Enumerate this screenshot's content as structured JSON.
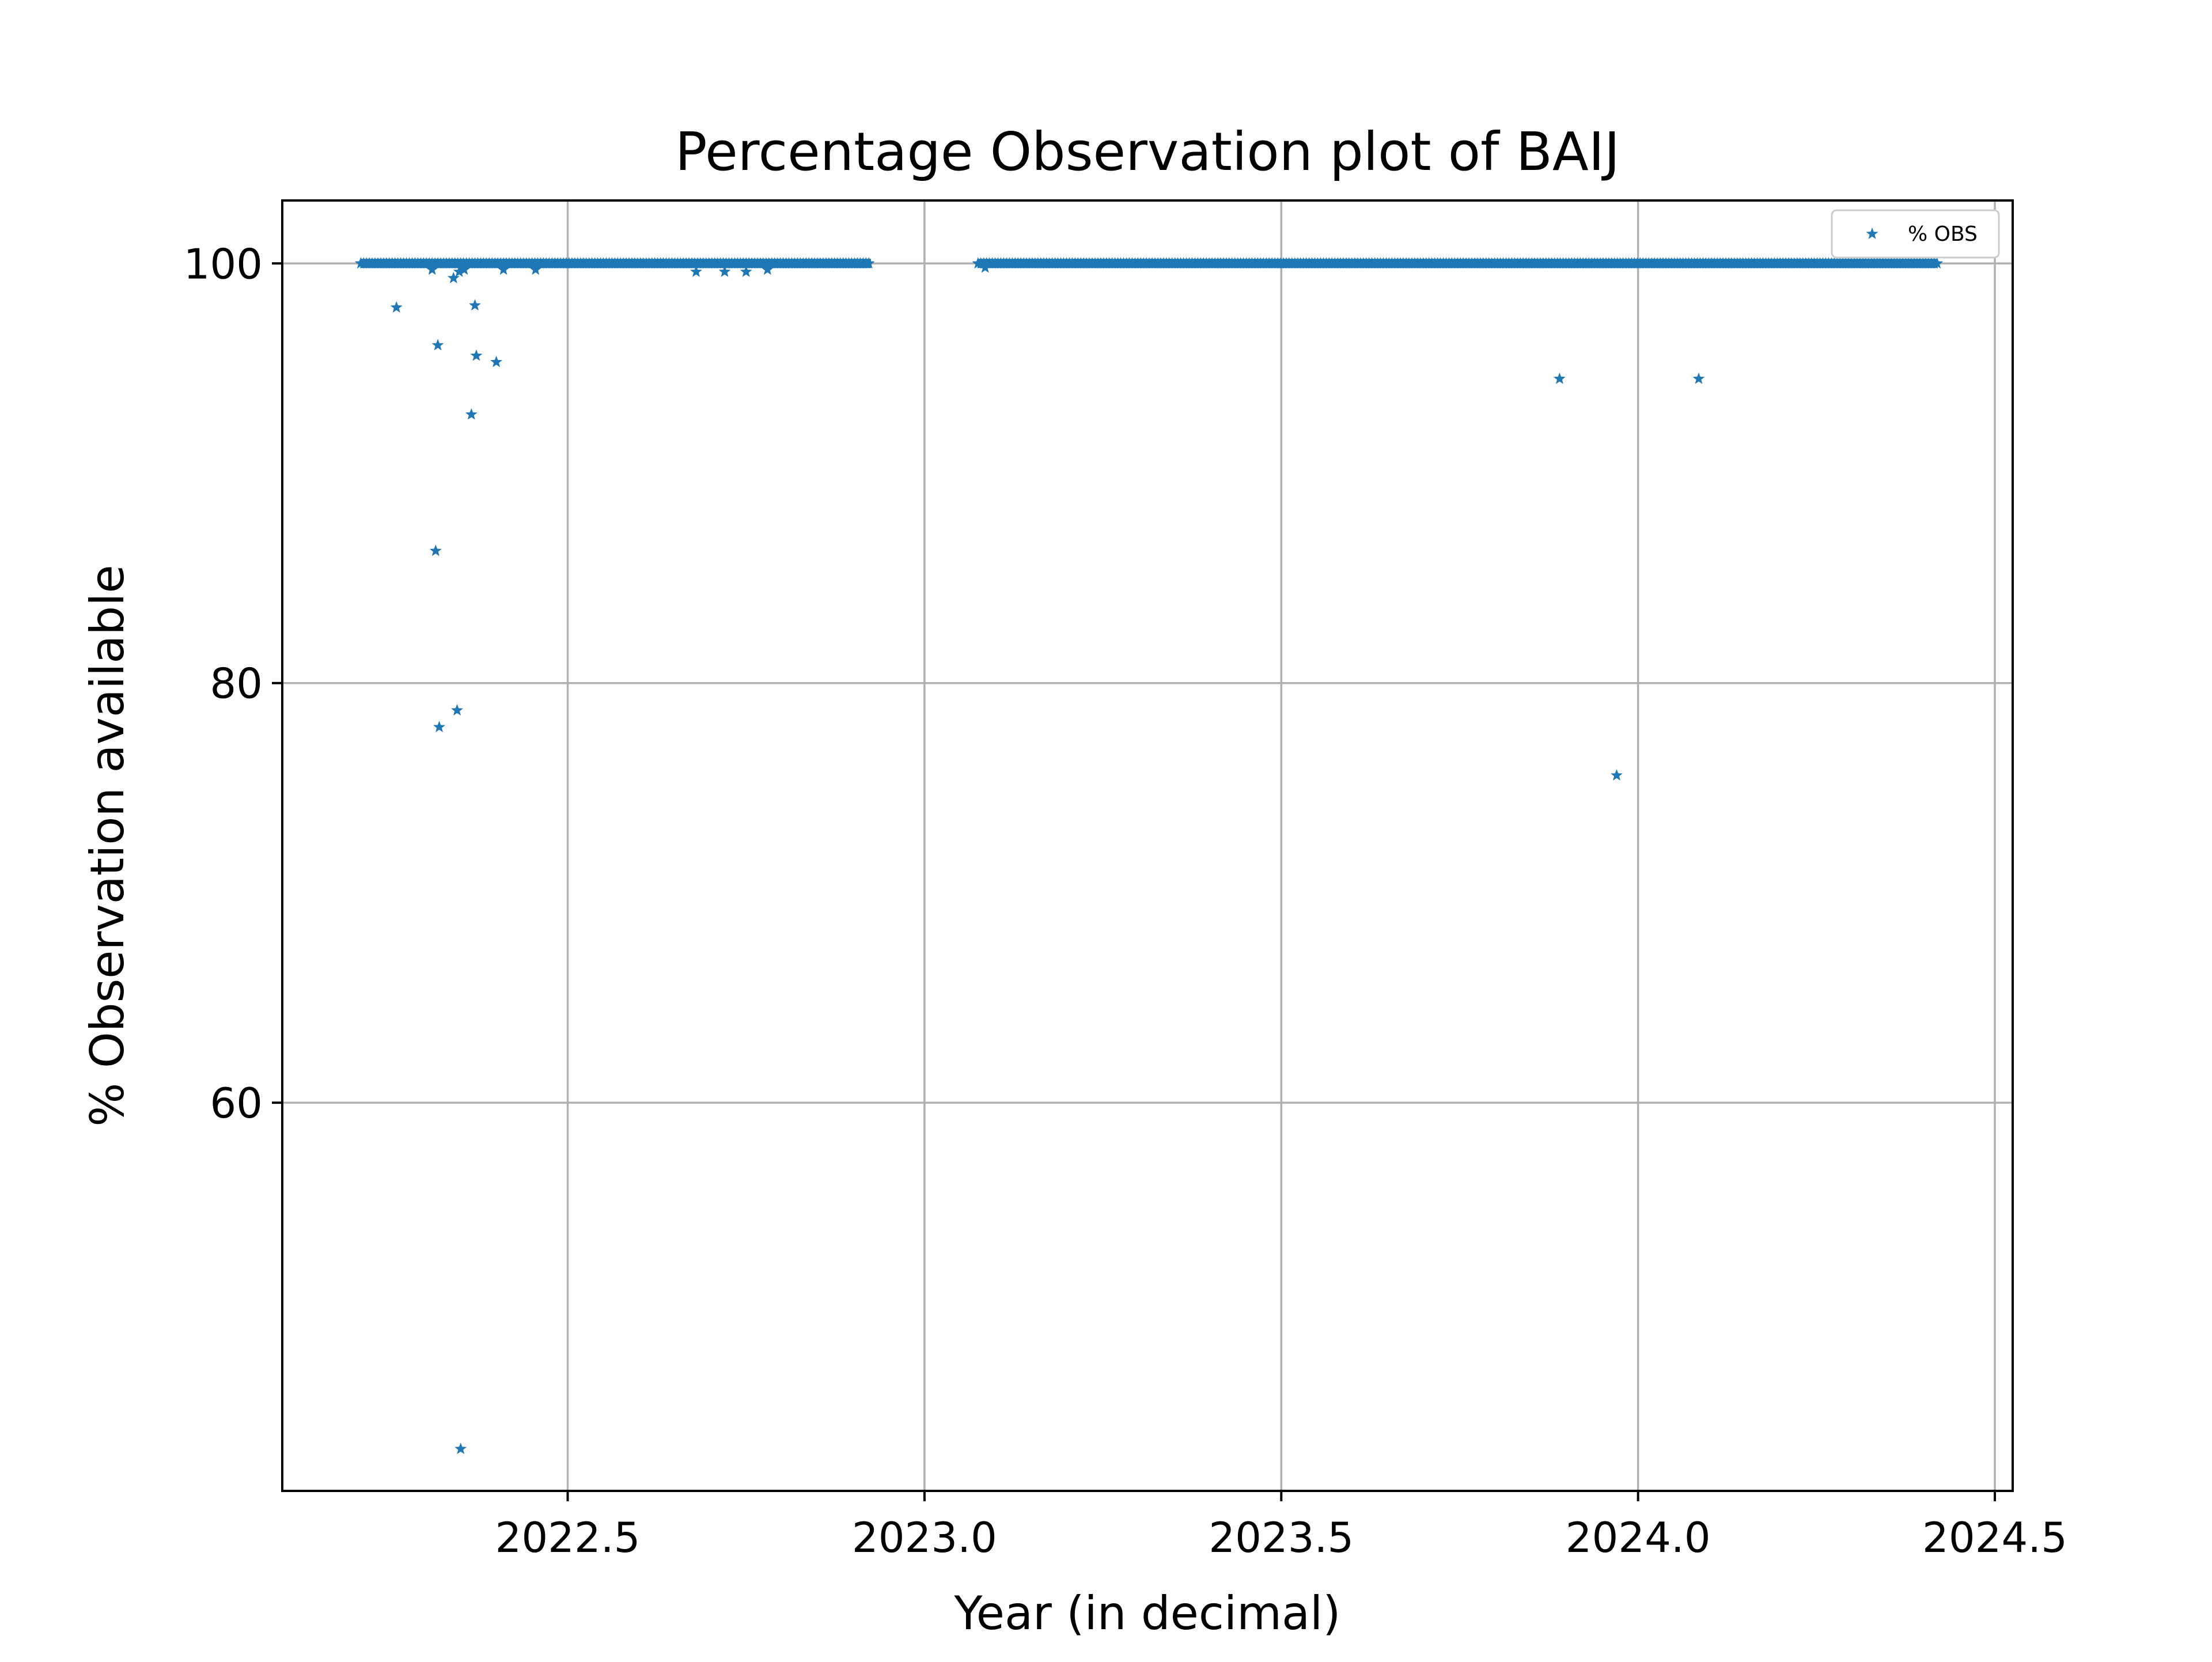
{
  "chart_data": {
    "type": "scatter",
    "title": "Percentage Observation plot of BAIJ",
    "xlabel": "Year (in decimal)",
    "ylabel": "% Observation available",
    "xlim": [
      2022.1,
      2024.525
    ],
    "ylim": [
      41.5,
      103.0
    ],
    "xticks": [
      2022.5,
      2023.0,
      2023.5,
      2024.0,
      2024.5
    ],
    "xtick_labels": [
      "2022.5",
      "2023.0",
      "2023.5",
      "2024.0",
      "2024.5"
    ],
    "yticks": [
      60,
      80,
      100
    ],
    "ytick_labels": [
      "60",
      "80",
      "100"
    ],
    "grid": true,
    "legend": {
      "position": "top-right",
      "entries": [
        "% OBS"
      ]
    },
    "marker": "star",
    "colors": {
      "series": "#1f77b4",
      "grid": "#b0b0b0",
      "axes": "#000000"
    },
    "series": [
      {
        "name": "% OBS",
        "dense_runs": [
          {
            "x_start": 2022.21,
            "x_end": 2022.925,
            "y": 100.0
          },
          {
            "x_start": 2023.075,
            "x_end": 2024.42,
            "y": 100.0
          }
        ],
        "points": [
          {
            "x": 2022.26,
            "y": 97.9
          },
          {
            "x": 2022.31,
            "y": 99.7
          },
          {
            "x": 2022.315,
            "y": 86.3
          },
          {
            "x": 2022.318,
            "y": 96.1
          },
          {
            "x": 2022.32,
            "y": 77.9
          },
          {
            "x": 2022.34,
            "y": 99.3
          },
          {
            "x": 2022.345,
            "y": 78.7
          },
          {
            "x": 2022.348,
            "y": 99.6
          },
          {
            "x": 2022.35,
            "y": 43.5
          },
          {
            "x": 2022.355,
            "y": 99.7
          },
          {
            "x": 2022.365,
            "y": 92.8
          },
          {
            "x": 2022.37,
            "y": 98.0
          },
          {
            "x": 2022.372,
            "y": 95.6
          },
          {
            "x": 2022.4,
            "y": 95.3
          },
          {
            "x": 2022.41,
            "y": 99.7
          },
          {
            "x": 2022.455,
            "y": 99.7
          },
          {
            "x": 2022.68,
            "y": 99.6
          },
          {
            "x": 2022.72,
            "y": 99.6
          },
          {
            "x": 2022.75,
            "y": 99.6
          },
          {
            "x": 2022.78,
            "y": 99.7
          },
          {
            "x": 2023.085,
            "y": 99.8
          },
          {
            "x": 2023.89,
            "y": 94.5
          },
          {
            "x": 2023.97,
            "y": 75.6
          },
          {
            "x": 2024.085,
            "y": 94.5
          }
        ]
      }
    ]
  }
}
